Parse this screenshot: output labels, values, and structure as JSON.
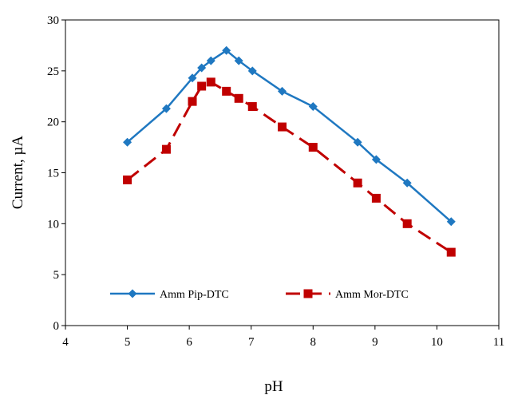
{
  "chart_data": {
    "type": "line",
    "xlabel": "pH",
    "ylabel": "Current, µA",
    "xlim": [
      4,
      11
    ],
    "ylim": [
      0,
      30
    ],
    "xticks": [
      4,
      5,
      6,
      7,
      8,
      9,
      10,
      11
    ],
    "yticks": [
      0,
      5,
      10,
      15,
      20,
      25,
      30
    ],
    "grid": false,
    "legend_position": "bottom-inside",
    "series": [
      {
        "name": "Amm Pip-DTC",
        "color": "#1f78c1",
        "marker": "diamond",
        "line_style": "solid",
        "x": [
          5.0,
          5.63,
          6.05,
          6.2,
          6.35,
          6.6,
          6.8,
          7.02,
          7.5,
          8.0,
          8.72,
          9.02,
          9.52,
          10.23
        ],
        "y": [
          18.0,
          21.3,
          24.3,
          25.3,
          26.0,
          27.0,
          26.0,
          25.0,
          23.0,
          21.5,
          18.0,
          16.3,
          14.0,
          10.2
        ]
      },
      {
        "name": "Amm Mor-DTC",
        "color": "#c00000",
        "marker": "square",
        "line_style": "dashed",
        "x": [
          5.0,
          5.63,
          6.05,
          6.2,
          6.35,
          6.6,
          6.8,
          7.02,
          7.5,
          8.0,
          8.72,
          9.02,
          9.52,
          10.23
        ],
        "y": [
          14.3,
          17.3,
          22.0,
          23.5,
          23.9,
          23.0,
          22.3,
          21.5,
          19.5,
          17.5,
          14.0,
          12.5,
          10.0,
          7.2
        ]
      }
    ]
  }
}
